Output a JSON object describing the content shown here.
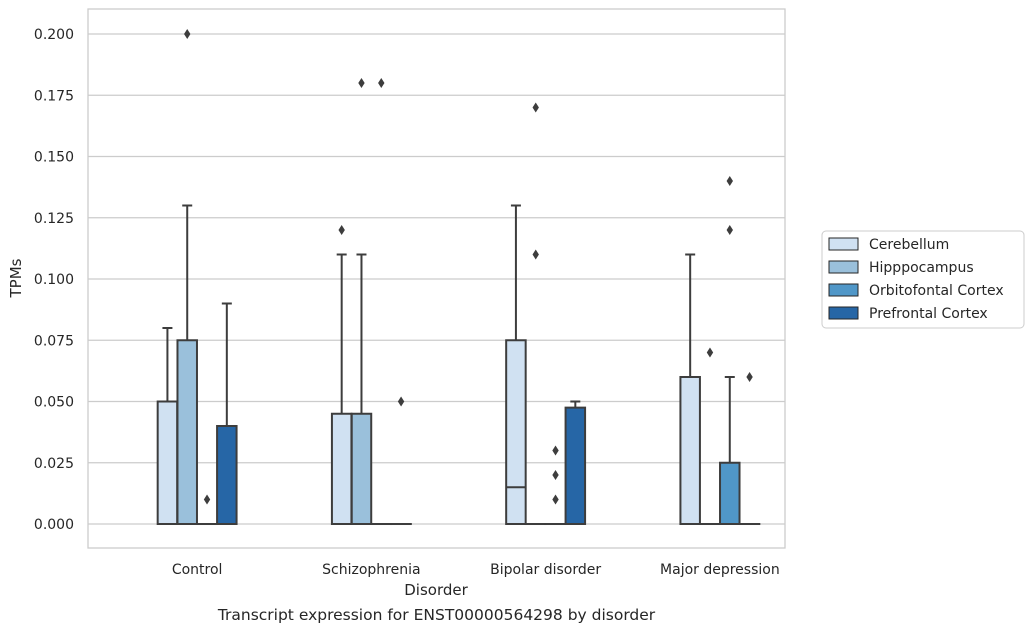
{
  "chart_data": {
    "type": "boxplot",
    "title": "",
    "caption": "Transcript expression for ENST00000564298 by disorder",
    "xlabel": "Disorder",
    "ylabel": "TPMs",
    "ylim": [
      -0.01,
      0.21
    ],
    "yticks": [
      "0.000",
      "0.025",
      "0.050",
      "0.075",
      "0.100",
      "0.125",
      "0.150",
      "0.175",
      "0.200"
    ],
    "ytick_values": [
      0,
      0.025,
      0.05,
      0.075,
      0.1,
      0.125,
      0.15,
      0.175,
      0.2
    ],
    "categories": [
      "Control",
      "Schizophrenia",
      "Bipolar disorder",
      "Major depression"
    ],
    "grid": true,
    "legend_position": "right",
    "series": [
      {
        "name": "Cerebellum",
        "color": "#d0e1f2",
        "boxes": [
          {
            "q1": 0,
            "median": 0,
            "q3": 0.05,
            "whisker_low": 0,
            "whisker_high": 0.08,
            "outliers": []
          },
          {
            "q1": 0,
            "median": 0,
            "q3": 0.045,
            "whisker_low": 0,
            "whisker_high": 0.11,
            "outliers": [
              0.12
            ]
          },
          {
            "q1": 0,
            "median": 0.015,
            "q3": 0.075,
            "whisker_low": 0,
            "whisker_high": 0.13,
            "outliers": []
          },
          {
            "q1": 0,
            "median": 0,
            "q3": 0.06,
            "whisker_low": 0,
            "whisker_high": 0.11,
            "outliers": []
          }
        ]
      },
      {
        "name": "Hipppocampus",
        "color": "#9ac0db",
        "boxes": [
          {
            "q1": 0,
            "median": 0,
            "q3": 0.075,
            "whisker_low": 0,
            "whisker_high": 0.13,
            "outliers": [
              0.2
            ]
          },
          {
            "q1": 0,
            "median": 0,
            "q3": 0.045,
            "whisker_low": 0,
            "whisker_high": 0.11,
            "outliers": [
              0.18
            ]
          },
          {
            "q1": 0,
            "median": 0,
            "q3": 0,
            "whisker_low": 0,
            "whisker_high": 0,
            "outliers": [
              0.17,
              0.11
            ]
          },
          {
            "q1": 0,
            "median": 0,
            "q3": 0,
            "whisker_low": 0,
            "whisker_high": 0,
            "outliers": [
              0.07
            ]
          }
        ]
      },
      {
        "name": "Orbitofontal Cortex",
        "color": "#5097c8",
        "boxes": [
          {
            "q1": 0,
            "median": 0,
            "q3": 0,
            "whisker_low": 0,
            "whisker_high": 0,
            "outliers": [
              0.01
            ]
          },
          {
            "q1": 0,
            "median": 0,
            "q3": 0,
            "whisker_low": 0,
            "whisker_high": 0,
            "outliers": [
              0.18
            ]
          },
          {
            "q1": 0,
            "median": 0,
            "q3": 0,
            "whisker_low": 0,
            "whisker_high": 0,
            "outliers": [
              0.03,
              0.02,
              0.01
            ]
          },
          {
            "q1": 0,
            "median": 0,
            "q3": 0.025,
            "whisker_low": 0,
            "whisker_high": 0.06,
            "outliers": [
              0.14,
              0.12
            ]
          }
        ]
      },
      {
        "name": "Prefrontal Cortex",
        "color": "#2666a6",
        "boxes": [
          {
            "q1": 0,
            "median": 0,
            "q3": 0.04,
            "whisker_low": 0,
            "whisker_high": 0.09,
            "outliers": []
          },
          {
            "q1": 0,
            "median": 0,
            "q3": 0,
            "whisker_low": 0,
            "whisker_high": 0,
            "outliers": [
              0.05
            ]
          },
          {
            "q1": 0,
            "median": 0,
            "q3": 0.0475,
            "whisker_low": 0,
            "whisker_high": 0.05,
            "outliers": []
          },
          {
            "q1": 0,
            "median": 0,
            "q3": 0,
            "whisker_low": 0,
            "whisker_high": 0,
            "outliers": [
              0.06
            ]
          }
        ]
      }
    ]
  }
}
